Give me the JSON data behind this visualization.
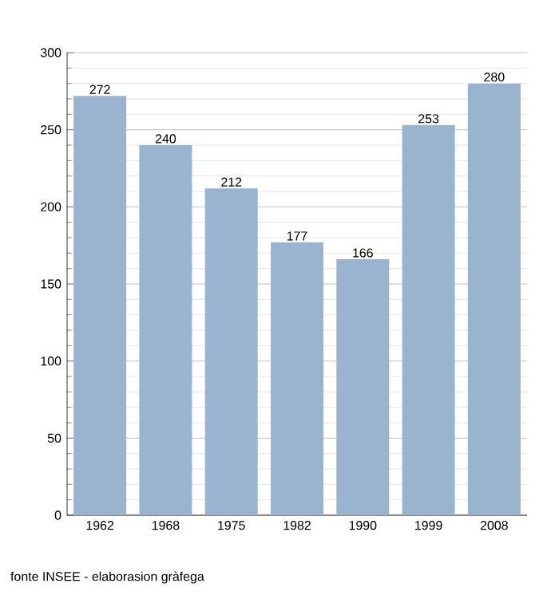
{
  "chart_data": {
    "type": "bar",
    "categories": [
      "1962",
      "1968",
      "1975",
      "1982",
      "1990",
      "1999",
      "2008"
    ],
    "values": [
      272,
      240,
      212,
      177,
      166,
      253,
      280
    ],
    "color": "#9ab3cf",
    "ylim": [
      0,
      300
    ],
    "yticks": [
      0,
      50,
      100,
      150,
      200,
      250,
      300
    ],
    "grid": "y",
    "data_labels": true,
    "annotations": [
      "fonte INSEE - elaborasion gràfega"
    ]
  }
}
